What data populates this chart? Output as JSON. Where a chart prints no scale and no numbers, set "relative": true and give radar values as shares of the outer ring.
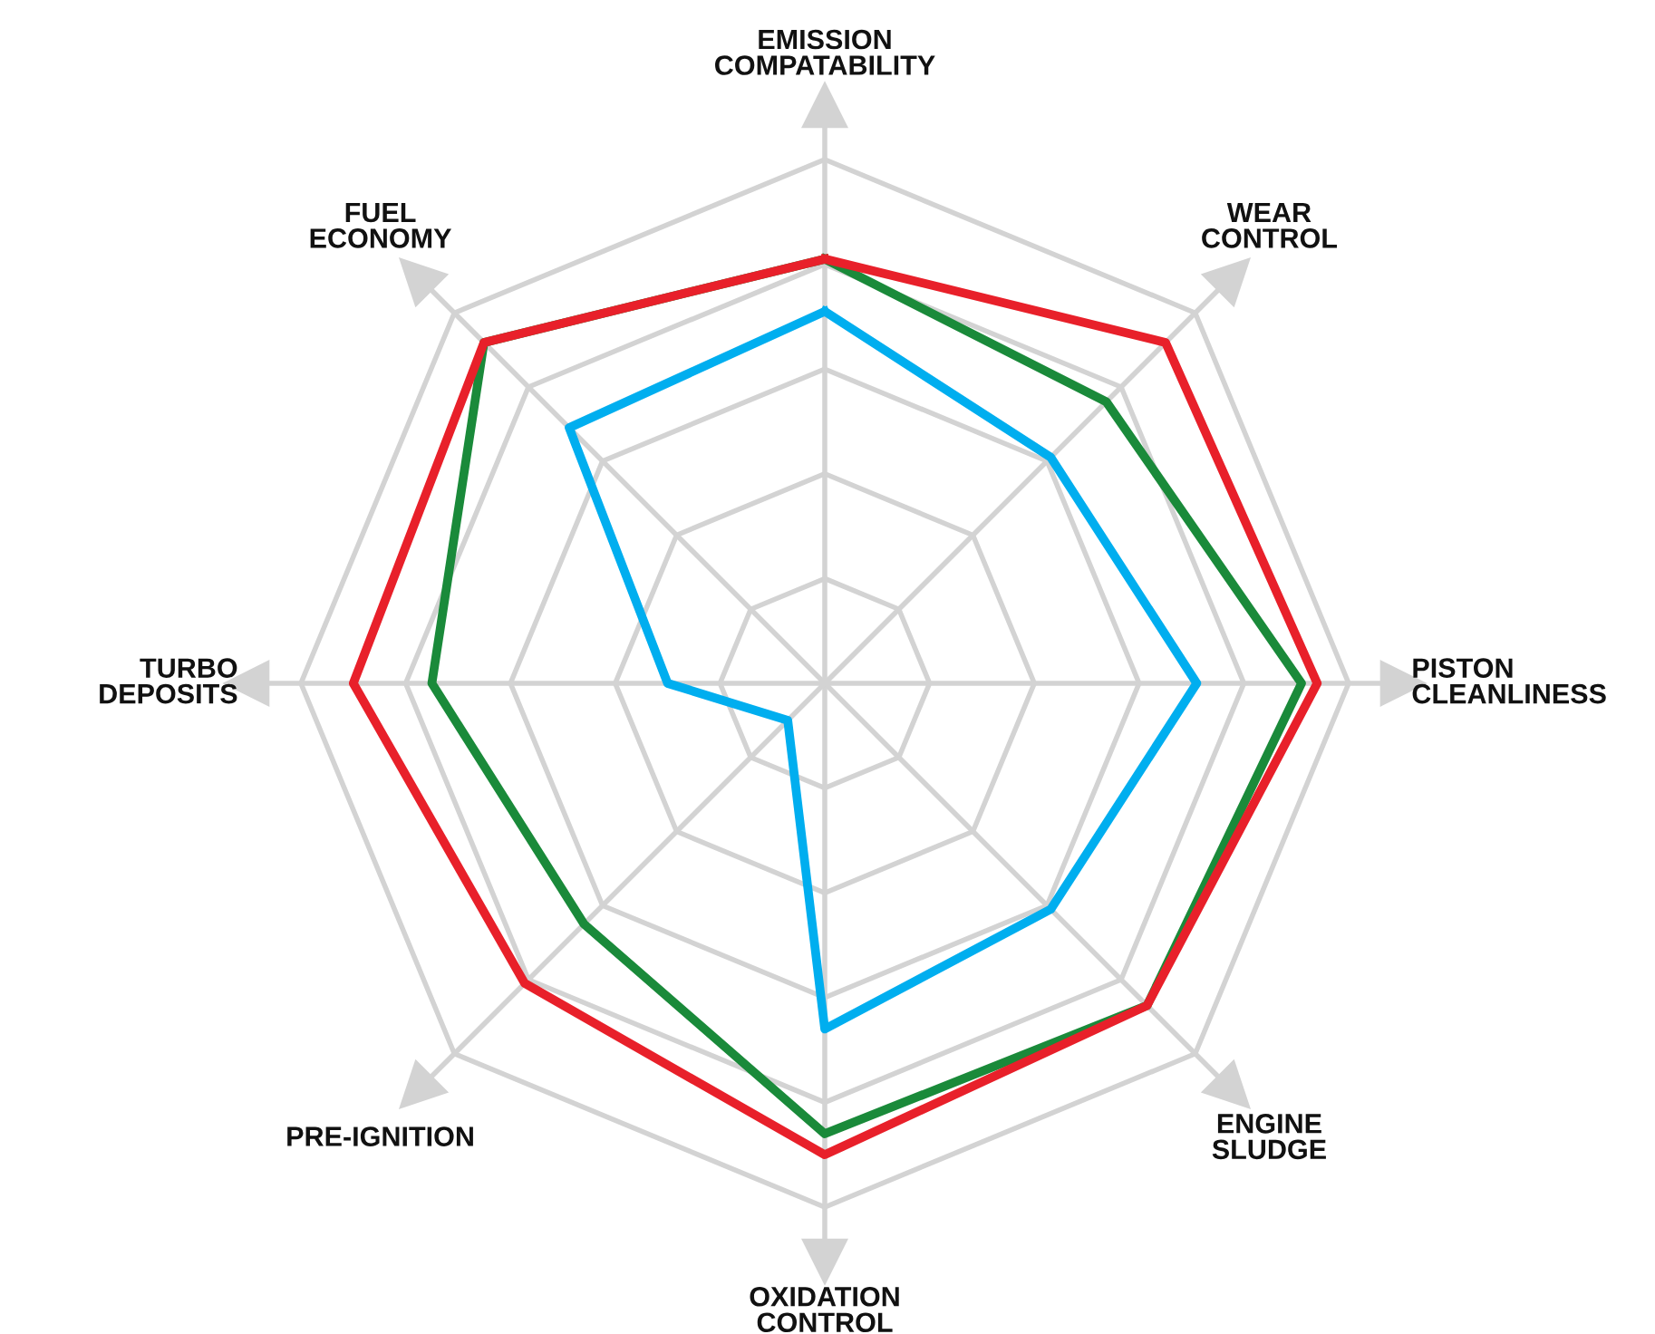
{
  "chart_data": {
    "type": "radar",
    "relative": true,
    "grid": true,
    "legend": false,
    "marker": "none",
    "line_style": "solid",
    "categories": [
      "EMISSION\nCOMPATABILITY",
      "WEAR\nCONTROL",
      "PISTON\nCLEANLINESS",
      "ENGINE\nSLUDGE",
      "OXIDATION\nCONTROL",
      "PRE-IGNITION",
      "TURBO\nDEPOSITS",
      "FUEL\nECONOMY"
    ],
    "series": [
      {
        "color": "#00aeef",
        "values": [
          0.71,
          0.61,
          0.71,
          0.61,
          0.66,
          0.1,
          0.3,
          0.69
        ]
      },
      {
        "color": "#1a8a3a",
        "values": [
          0.81,
          0.76,
          0.91,
          0.87,
          0.86,
          0.65,
          0.75,
          0.92
        ]
      },
      {
        "color": "#e8202a",
        "values": [
          0.81,
          0.92,
          0.94,
          0.87,
          0.9,
          0.81,
          0.9,
          0.92
        ]
      }
    ]
  }
}
